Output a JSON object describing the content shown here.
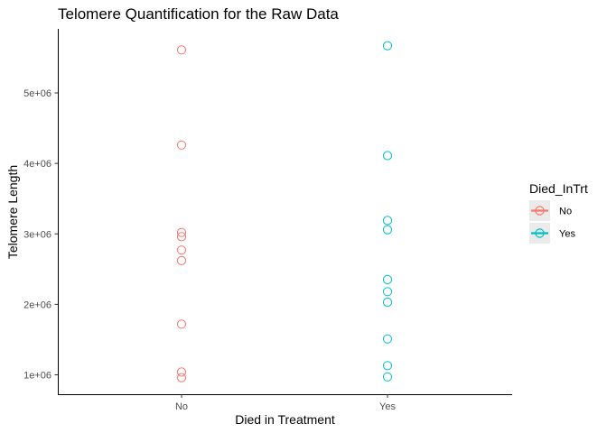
{
  "chart_data": {
    "type": "scatter",
    "title": "Telomere Quantification for the Raw Data",
    "xlabel": "Died in Treatment",
    "ylabel": "Telomere Length",
    "categories": [
      "No",
      "Yes"
    ],
    "y_ticks": [
      1000000,
      2000000,
      3000000,
      4000000,
      5000000
    ],
    "y_tick_labels": [
      "1e+06",
      "2e+06",
      "3e+06",
      "4e+06",
      "5e+06"
    ],
    "ylim": [
      800000,
      5900000
    ],
    "grid": false,
    "legend": {
      "title": "Died_InTrt",
      "position": "right",
      "entries": [
        {
          "label": "No",
          "color": "#F8766D"
        },
        {
          "label": "Yes",
          "color": "#00BFC4"
        }
      ]
    },
    "series": [
      {
        "name": "No",
        "color": "#F8766D",
        "category": "No",
        "values": [
          5610000,
          4260000,
          3020000,
          2960000,
          2770000,
          2620000,
          1720000,
          1040000,
          960000
        ]
      },
      {
        "name": "Yes",
        "color": "#00BFC4",
        "category": "Yes",
        "values": [
          5670000,
          4110000,
          3190000,
          3060000,
          2350000,
          2180000,
          2030000,
          1510000,
          1130000,
          970000
        ]
      }
    ]
  }
}
